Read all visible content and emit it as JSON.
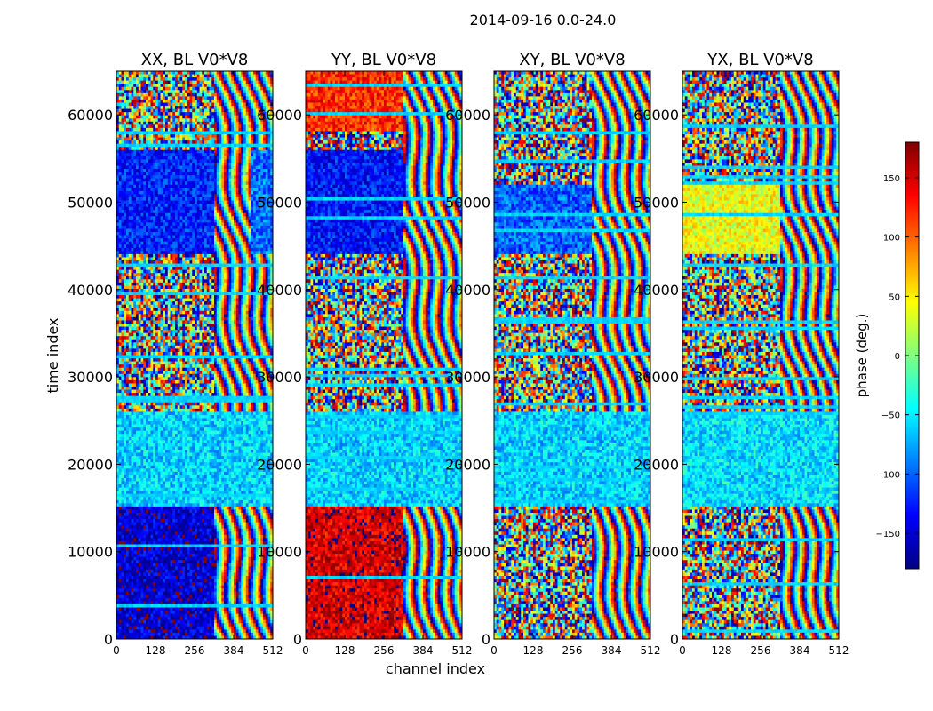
{
  "chart_data": {
    "type": "heatmap",
    "suptitle": "2014-09-16 0.0-24.0",
    "xlabel": "channel index",
    "ylabel": "time index",
    "x_range": [
      0,
      512
    ],
    "y_range": [
      0,
      65000
    ],
    "x_ticks": [
      "0",
      "128",
      "256",
      "384",
      "512"
    ],
    "y_ticks": [
      "0",
      "10000",
      "20000",
      "30000",
      "40000",
      "50000",
      "60000"
    ],
    "colorbar": {
      "label": "phase (deg.)",
      "range": [
        -180,
        180
      ],
      "ticks": [
        "150",
        "100",
        "50",
        "0",
        "−50",
        "−100",
        "−150"
      ],
      "tick_values": [
        150,
        100,
        50,
        0,
        -50,
        -100,
        -150
      ],
      "colormap": [
        "#00007f",
        "#0000ff",
        "#007fff",
        "#00ffff",
        "#7fff7f",
        "#ffff00",
        "#ff7f00",
        "#ff0000",
        "#7f0000"
      ]
    },
    "panels": [
      {
        "title": "XX, BL V0*V8",
        "regions": [
          {
            "t": [
              0,
              15000
            ],
            "ch": [
              0,
              320
            ],
            "phase": -150
          },
          {
            "t": [
              15000,
              26000
            ],
            "ch": [
              0,
              512
            ],
            "phase": -60
          },
          {
            "t": [
              44000,
              56000
            ],
            "ch": [
              0,
              320
            ],
            "phase": -125
          },
          {
            "t": [
              44000,
              56000
            ],
            "ch": [
              440,
              512
            ],
            "phase": -95
          }
        ]
      },
      {
        "title": "YY, BL V0*V8",
        "regions": [
          {
            "t": [
              0,
              15000
            ],
            "ch": [
              0,
              320
            ],
            "phase": 150
          },
          {
            "t": [
              15000,
              26000
            ],
            "ch": [
              0,
              512
            ],
            "phase": -60
          },
          {
            "t": [
              44000,
              56000
            ],
            "ch": [
              0,
              320
            ],
            "phase": -130
          },
          {
            "t": [
              58000,
              65000
            ],
            "ch": [
              0,
              320
            ],
            "phase": 120
          }
        ]
      },
      {
        "title": "XY, BL V0*V8",
        "regions": [
          {
            "t": [
              15000,
              26000
            ],
            "ch": [
              0,
              512
            ],
            "phase": -60
          },
          {
            "t": [
              44000,
              52000
            ],
            "ch": [
              0,
              320
            ],
            "phase": -100
          }
        ]
      },
      {
        "title": "YX, BL V0*V8",
        "regions": [
          {
            "t": [
              15000,
              26000
            ],
            "ch": [
              0,
              512
            ],
            "phase": -55
          },
          {
            "t": [
              44000,
              52000
            ],
            "ch": [
              0,
              320
            ],
            "phase": 40
          }
        ]
      }
    ]
  }
}
